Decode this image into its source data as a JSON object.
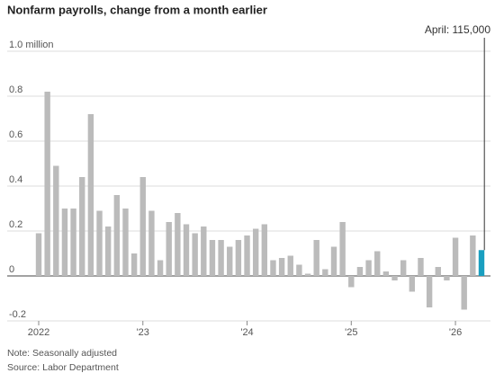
{
  "chart_data": {
    "type": "bar",
    "title": "Nonfarm payrolls, change from a month earlier",
    "annotation": "April: 115,000",
    "note": "Note: Seasonally adjusted",
    "source": "Source: Labor Department",
    "categories": [
      "2022",
      null,
      null,
      null,
      null,
      null,
      null,
      null,
      null,
      null,
      null,
      null,
      "'23",
      null,
      null,
      null,
      null,
      null,
      null,
      null,
      null,
      null,
      null,
      null,
      "'24",
      null,
      null,
      null,
      null,
      null,
      null,
      null,
      null,
      null,
      null,
      null,
      "'25",
      null,
      null,
      null,
      null,
      null,
      null,
      null,
      null,
      null,
      null,
      null,
      "'26",
      null,
      null,
      null
    ],
    "values": [
      0.19,
      0.82,
      0.49,
      0.3,
      0.3,
      0.44,
      0.72,
      0.29,
      0.22,
      0.36,
      0.3,
      0.1,
      0.44,
      0.29,
      0.07,
      0.24,
      0.28,
      0.23,
      0.19,
      0.22,
      0.16,
      0.16,
      0.13,
      0.16,
      0.18,
      0.21,
      0.23,
      0.07,
      0.08,
      0.09,
      0.05,
      0.01,
      0.16,
      0.03,
      0.13,
      0.24,
      -0.05,
      0.04,
      0.07,
      0.11,
      0.02,
      -0.02,
      0.07,
      -0.07,
      0.08,
      -0.14,
      0.04,
      -0.02,
      0.17,
      -0.15,
      0.18,
      0.115
    ],
    "colors": [
      "#bbbbbb",
      "#bbbbbb",
      "#bbbbbb",
      "#bbbbbb",
      "#bbbbbb",
      "#bbbbbb",
      "#bbbbbb",
      "#bbbbbb",
      "#bbbbbb",
      "#bbbbbb",
      "#bbbbbb",
      "#bbbbbb",
      "#bbbbbb",
      "#bbbbbb",
      "#bbbbbb",
      "#bbbbbb",
      "#bbbbbb",
      "#bbbbbb",
      "#bbbbbb",
      "#bbbbbb",
      "#bbbbbb",
      "#bbbbbb",
      "#bbbbbb",
      "#bbbbbb",
      "#bbbbbb",
      "#bbbbbb",
      "#bbbbbb",
      "#bbbbbb",
      "#bbbbbb",
      "#bbbbbb",
      "#bbbbbb",
      "#bbbbbb",
      "#bbbbbb",
      "#bbbbbb",
      "#bbbbbb",
      "#bbbbbb",
      "#bbbbbb",
      "#bbbbbb",
      "#bbbbbb",
      "#bbbbbb",
      "#bbbbbb",
      "#bbbbbb",
      "#bbbbbb",
      "#bbbbbb",
      "#bbbbbb",
      "#bbbbbb",
      "#bbbbbb",
      "#bbbbbb",
      "#bbbbbb",
      "#bbbbbb",
      "#bbbbbb",
      "#1a9fc0"
    ],
    "ylim": [
      -0.2,
      1.0
    ],
    "yticks": [
      -0.2,
      0,
      0.2,
      0.4,
      0.6,
      0.8,
      {
        "value": 1.0,
        "label": "1.0 million"
      }
    ],
    "grid": true
  }
}
